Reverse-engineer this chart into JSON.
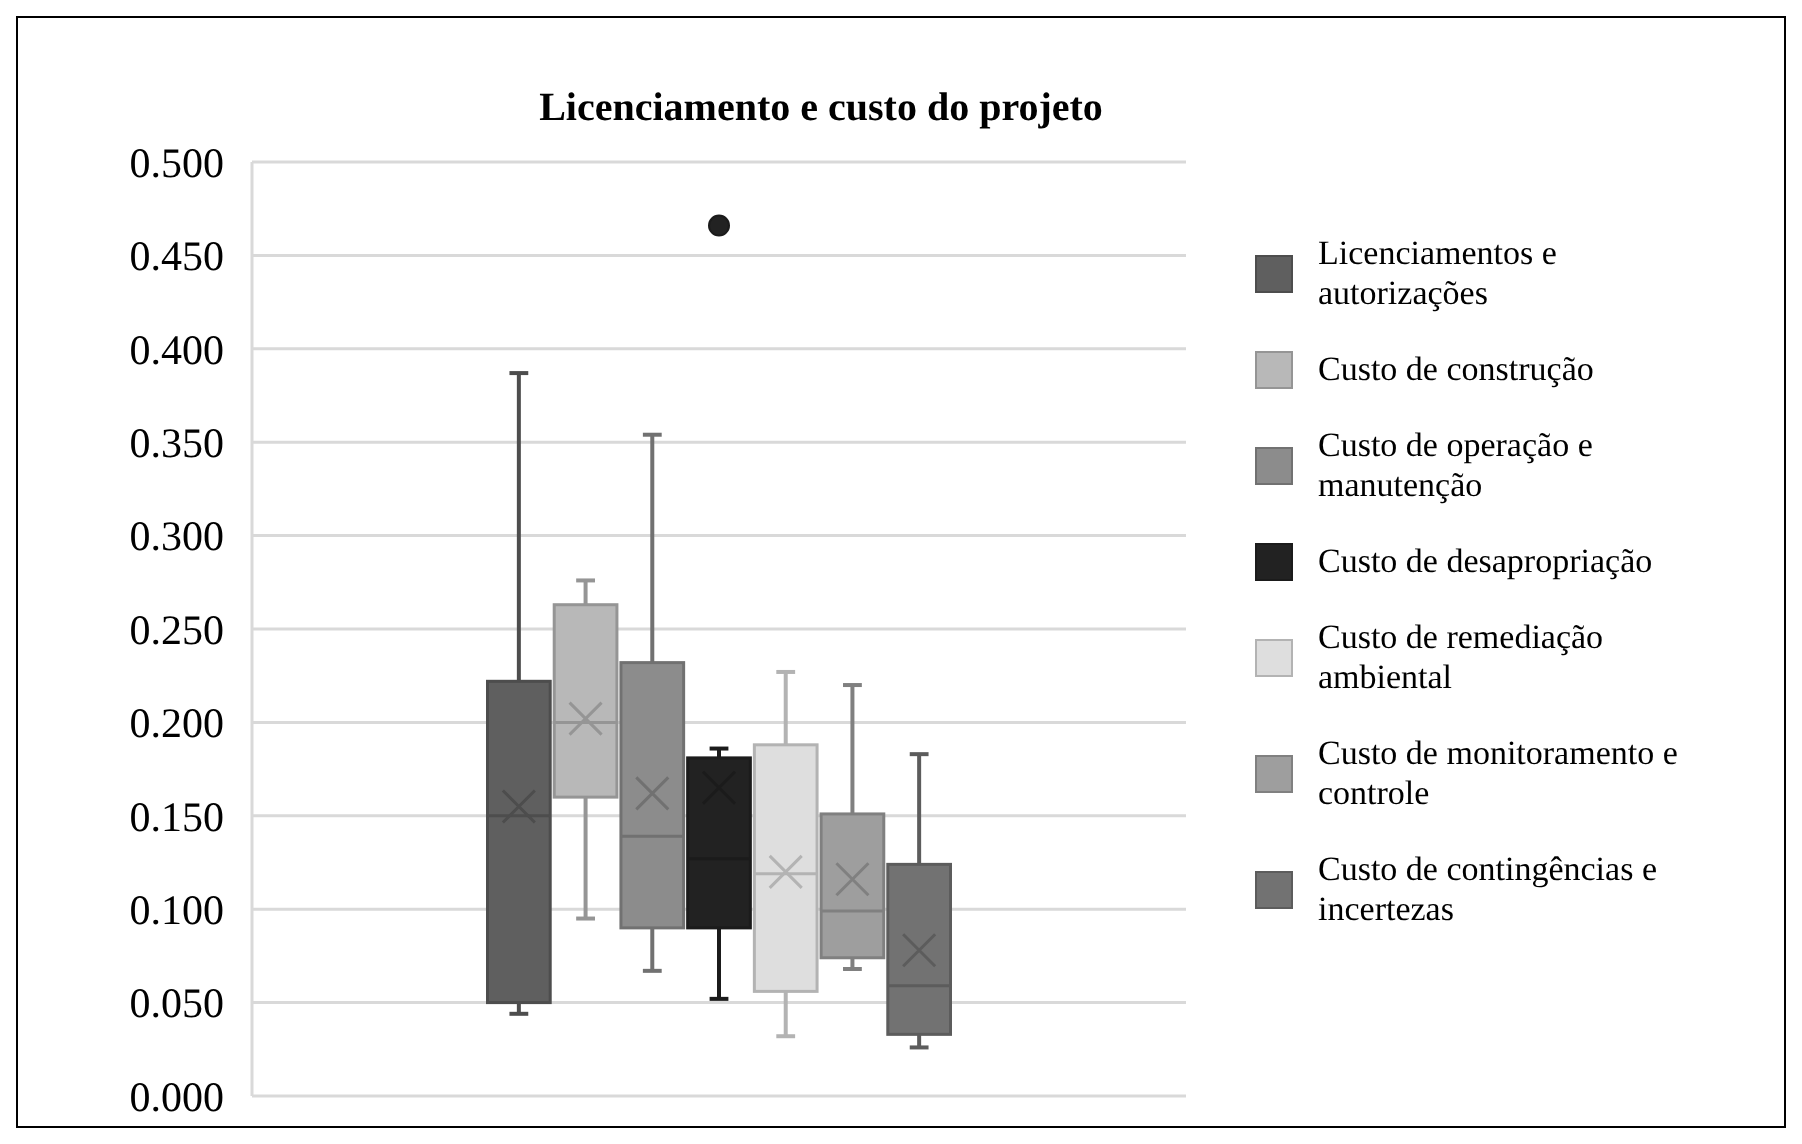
{
  "chart_data": {
    "type": "box",
    "title": "Licenciamento e custo do projeto",
    "categories": [
      null
    ],
    "ylim": [
      0,
      0.5
    ],
    "yticks": [
      {
        "value": 0,
        "label": "0.000"
      },
      {
        "value": 0.05,
        "label": "0.050"
      },
      {
        "value": 0.1,
        "label": "0.100"
      },
      {
        "value": 0.15,
        "label": "0.150"
      },
      {
        "value": 0.2,
        "label": "0.200"
      },
      {
        "value": 0.25,
        "label": "0.250"
      },
      {
        "value": 0.3,
        "label": "0.300"
      },
      {
        "value": 0.35,
        "label": "0.350"
      },
      {
        "value": 0.4,
        "label": "0.400"
      },
      {
        "value": 0.45,
        "label": "0.450"
      },
      {
        "value": 0.5,
        "label": "0.500"
      }
    ],
    "grid": "y",
    "legend": "right",
    "marker": "cross",
    "series": [
      {
        "name": "Licenciamentos e autorizações",
        "color": "#5f5f5f",
        "boxes": [
          {
            "low": 0.044,
            "q1": 0.05,
            "median": 0.15,
            "q3": 0.222,
            "high": 0.387,
            "mean": 0.155
          }
        ]
      },
      {
        "name": "Custo de construção",
        "color": "#b8b8b8",
        "boxes": [
          {
            "low": 0.095,
            "q1": 0.16,
            "median": 0.2,
            "q3": 0.263,
            "high": 0.276,
            "mean": 0.202
          }
        ]
      },
      {
        "name": "Custo de operação e manutenção",
        "color": "#8c8c8c",
        "boxes": [
          {
            "low": 0.067,
            "q1": 0.09,
            "median": 0.139,
            "q3": 0.232,
            "high": 0.354,
            "mean": 0.162
          }
        ]
      },
      {
        "name": "Custo de desapropriação",
        "color": "#222222",
        "boxes": [
          {
            "low": 0.052,
            "q1": 0.09,
            "median": 0.127,
            "q3": 0.181,
            "high": 0.186,
            "mean": 0.165,
            "outliers": [
              0.466
            ]
          }
        ]
      },
      {
        "name": "Custo de remediação ambiental",
        "color": "#dedede",
        "boxes": [
          {
            "low": 0.032,
            "q1": 0.056,
            "median": 0.119,
            "q3": 0.188,
            "high": 0.227,
            "mean": 0.12
          }
        ]
      },
      {
        "name": "Custo de monitoramento e controle",
        "color": "#9e9e9e",
        "boxes": [
          {
            "low": 0.068,
            "q1": 0.074,
            "median": 0.099,
            "q3": 0.151,
            "high": 0.22,
            "mean": 0.116
          }
        ]
      },
      {
        "name": "Custo de contingências e incertezas",
        "color": "#727272",
        "boxes": [
          {
            "low": 0.026,
            "q1": 0.033,
            "median": 0.059,
            "q3": 0.124,
            "high": 0.183,
            "mean": 0.078
          }
        ]
      }
    ]
  }
}
